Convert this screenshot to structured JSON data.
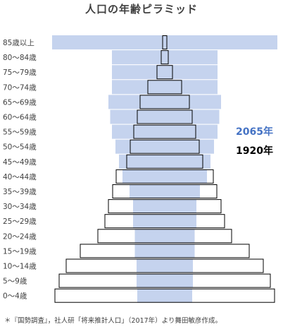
{
  "chart_data": {
    "type": "bar",
    "orientation": "horizontal-pyramid",
    "title": "人口の年齢ピラミッド",
    "categories": [
      "85歳以上",
      "80～84歳",
      "75～79歳",
      "70～74歳",
      "65～69歳",
      "60～64歳",
      "55～59歳",
      "50～54歳",
      "45～49歳",
      "40～44歳",
      "35～39歳",
      "30～34歳",
      "25～29歳",
      "20～24歳",
      "15～19歳",
      "10～14歳",
      "5～9歳",
      "0～4歳"
    ],
    "series": [
      {
        "name": "2065年",
        "color": "#c5d3ee",
        "values": [
          320,
          150,
          150,
          150,
          160,
          155,
          150,
          140,
          130,
          120,
          100,
          90,
          90,
          85,
          85,
          80,
          80,
          78
        ]
      },
      {
        "name": "1920年",
        "color": "#ffffff",
        "values": [
          6,
          10,
          22,
          48,
          70,
          78,
          88,
          98,
          108,
          138,
          148,
          160,
          170,
          190,
          240,
          280,
          300,
          312
        ]
      }
    ]
  },
  "source": "＊『国勢調査』，社人研「将来推計人口」（2017年）より舞田敏彦作成。"
}
